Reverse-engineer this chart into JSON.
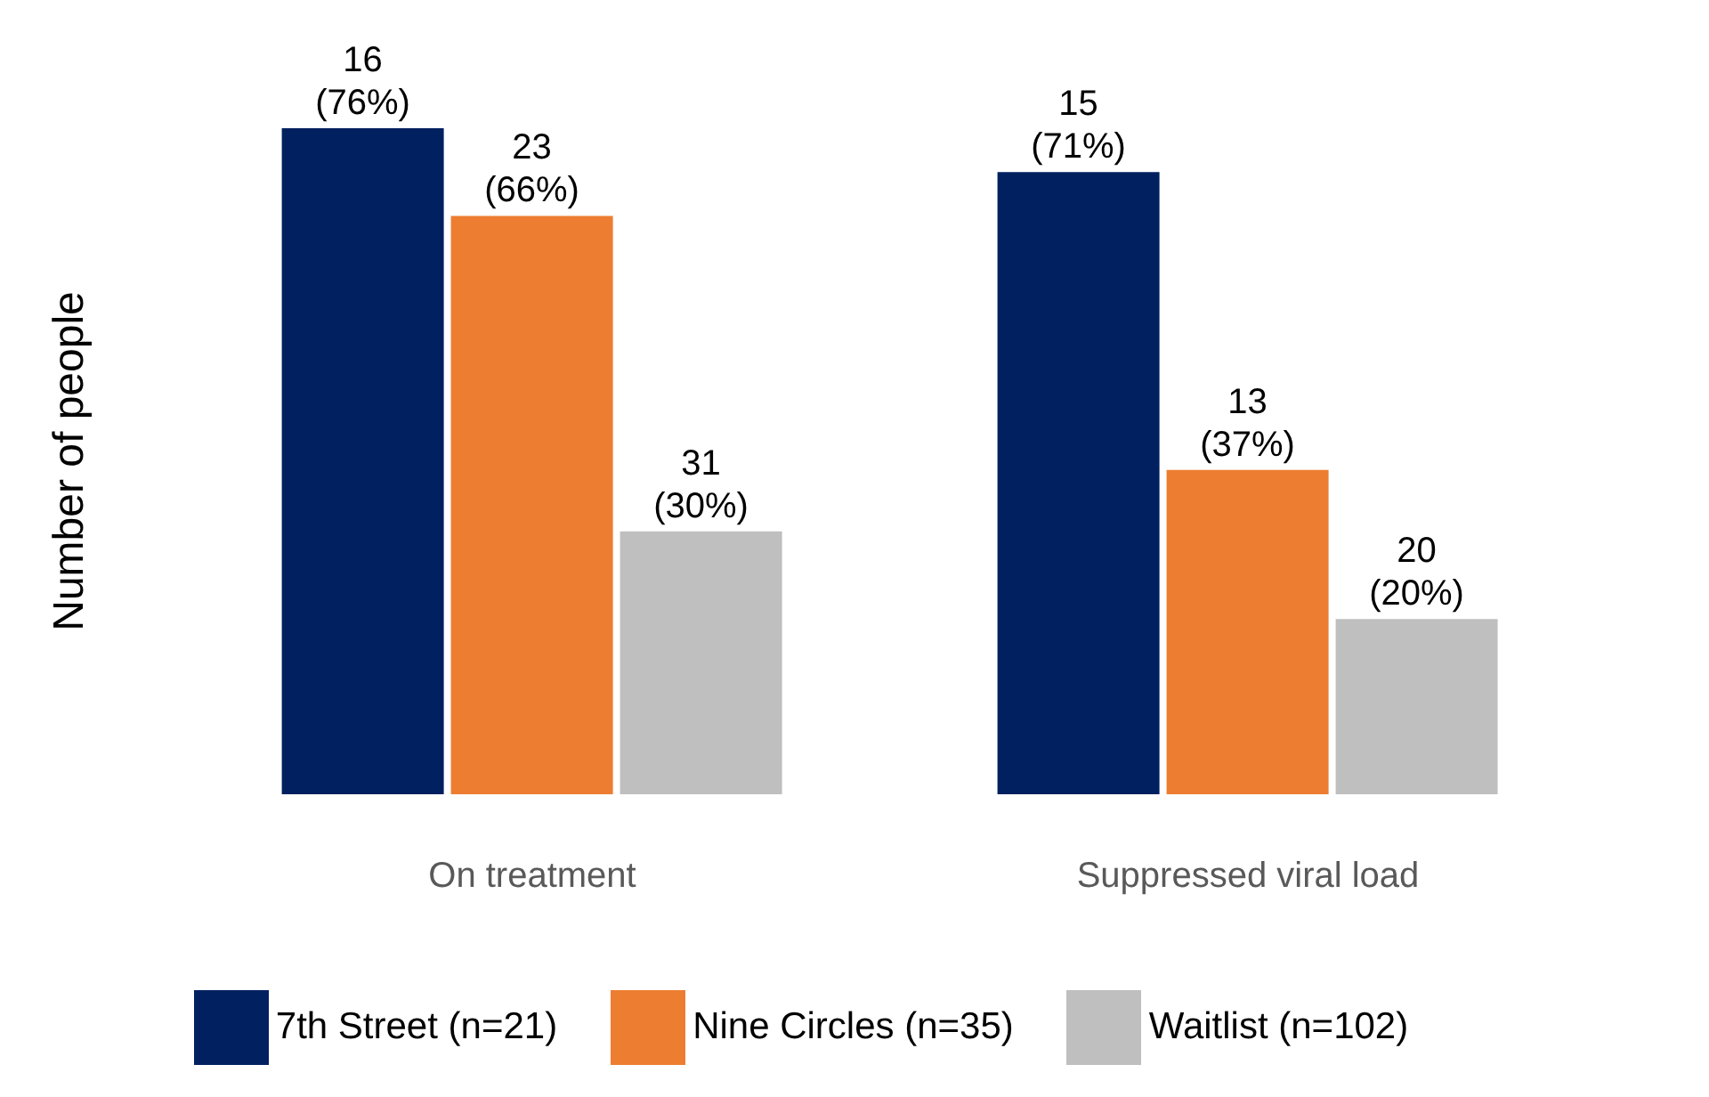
{
  "chart_data": {
    "type": "bar",
    "ylabel": "Number of people",
    "categories": [
      "On treatment",
      "Suppressed viral load"
    ],
    "series": [
      {
        "name": "7th Street (n=21)",
        "color": "#002060",
        "values": [
          76,
          71
        ],
        "value_labels": [
          "16 (76%)",
          "15 (71%)"
        ]
      },
      {
        "name": "Nine Circles (n=35)",
        "color": "#ed7d31",
        "values": [
          66,
          37
        ],
        "value_labels": [
          "23 (66%)",
          "13 (37%)"
        ]
      },
      {
        "name": "Waitlist (n=102)",
        "color": "#bfbfbf",
        "values": [
          30,
          20
        ],
        "value_labels": [
          "31 (30%)",
          "20 (20%)"
        ]
      }
    ],
    "legend": "bottom",
    "grid": false
  }
}
